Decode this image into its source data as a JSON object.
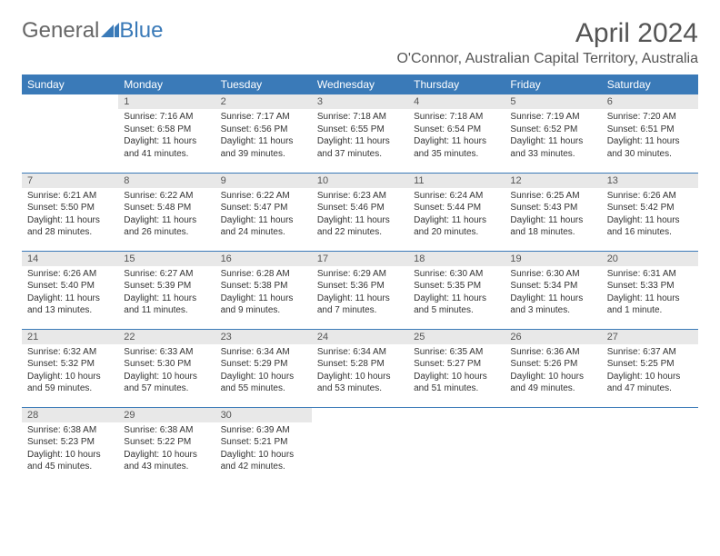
{
  "logo": {
    "general": "General",
    "blue": "Blue"
  },
  "header": {
    "month_title": "April 2024",
    "location": "O'Connor, Australian Capital Territory, Australia"
  },
  "colors": {
    "header_bg": "#3a7ab8",
    "daynum_bg": "#e8e8e8",
    "border": "#3a7ab8",
    "text": "#333333",
    "title_text": "#555555"
  },
  "weekdays": [
    "Sunday",
    "Monday",
    "Tuesday",
    "Wednesday",
    "Thursday",
    "Friday",
    "Saturday"
  ],
  "weeks": [
    [
      null,
      {
        "n": "1",
        "sr": "7:16 AM",
        "ss": "6:58 PM",
        "dl": "11 hours and 41 minutes."
      },
      {
        "n": "2",
        "sr": "7:17 AM",
        "ss": "6:56 PM",
        "dl": "11 hours and 39 minutes."
      },
      {
        "n": "3",
        "sr": "7:18 AM",
        "ss": "6:55 PM",
        "dl": "11 hours and 37 minutes."
      },
      {
        "n": "4",
        "sr": "7:18 AM",
        "ss": "6:54 PM",
        "dl": "11 hours and 35 minutes."
      },
      {
        "n": "5",
        "sr": "7:19 AM",
        "ss": "6:52 PM",
        "dl": "11 hours and 33 minutes."
      },
      {
        "n": "6",
        "sr": "7:20 AM",
        "ss": "6:51 PM",
        "dl": "11 hours and 30 minutes."
      }
    ],
    [
      {
        "n": "7",
        "sr": "6:21 AM",
        "ss": "5:50 PM",
        "dl": "11 hours and 28 minutes."
      },
      {
        "n": "8",
        "sr": "6:22 AM",
        "ss": "5:48 PM",
        "dl": "11 hours and 26 minutes."
      },
      {
        "n": "9",
        "sr": "6:22 AM",
        "ss": "5:47 PM",
        "dl": "11 hours and 24 minutes."
      },
      {
        "n": "10",
        "sr": "6:23 AM",
        "ss": "5:46 PM",
        "dl": "11 hours and 22 minutes."
      },
      {
        "n": "11",
        "sr": "6:24 AM",
        "ss": "5:44 PM",
        "dl": "11 hours and 20 minutes."
      },
      {
        "n": "12",
        "sr": "6:25 AM",
        "ss": "5:43 PM",
        "dl": "11 hours and 18 minutes."
      },
      {
        "n": "13",
        "sr": "6:26 AM",
        "ss": "5:42 PM",
        "dl": "11 hours and 16 minutes."
      }
    ],
    [
      {
        "n": "14",
        "sr": "6:26 AM",
        "ss": "5:40 PM",
        "dl": "11 hours and 13 minutes."
      },
      {
        "n": "15",
        "sr": "6:27 AM",
        "ss": "5:39 PM",
        "dl": "11 hours and 11 minutes."
      },
      {
        "n": "16",
        "sr": "6:28 AM",
        "ss": "5:38 PM",
        "dl": "11 hours and 9 minutes."
      },
      {
        "n": "17",
        "sr": "6:29 AM",
        "ss": "5:36 PM",
        "dl": "11 hours and 7 minutes."
      },
      {
        "n": "18",
        "sr": "6:30 AM",
        "ss": "5:35 PM",
        "dl": "11 hours and 5 minutes."
      },
      {
        "n": "19",
        "sr": "6:30 AM",
        "ss": "5:34 PM",
        "dl": "11 hours and 3 minutes."
      },
      {
        "n": "20",
        "sr": "6:31 AM",
        "ss": "5:33 PM",
        "dl": "11 hours and 1 minute."
      }
    ],
    [
      {
        "n": "21",
        "sr": "6:32 AM",
        "ss": "5:32 PM",
        "dl": "10 hours and 59 minutes."
      },
      {
        "n": "22",
        "sr": "6:33 AM",
        "ss": "5:30 PM",
        "dl": "10 hours and 57 minutes."
      },
      {
        "n": "23",
        "sr": "6:34 AM",
        "ss": "5:29 PM",
        "dl": "10 hours and 55 minutes."
      },
      {
        "n": "24",
        "sr": "6:34 AM",
        "ss": "5:28 PM",
        "dl": "10 hours and 53 minutes."
      },
      {
        "n": "25",
        "sr": "6:35 AM",
        "ss": "5:27 PM",
        "dl": "10 hours and 51 minutes."
      },
      {
        "n": "26",
        "sr": "6:36 AM",
        "ss": "5:26 PM",
        "dl": "10 hours and 49 minutes."
      },
      {
        "n": "27",
        "sr": "6:37 AM",
        "ss": "5:25 PM",
        "dl": "10 hours and 47 minutes."
      }
    ],
    [
      {
        "n": "28",
        "sr": "6:38 AM",
        "ss": "5:23 PM",
        "dl": "10 hours and 45 minutes."
      },
      {
        "n": "29",
        "sr": "6:38 AM",
        "ss": "5:22 PM",
        "dl": "10 hours and 43 minutes."
      },
      {
        "n": "30",
        "sr": "6:39 AM",
        "ss": "5:21 PM",
        "dl": "10 hours and 42 minutes."
      },
      null,
      null,
      null,
      null
    ]
  ],
  "labels": {
    "sunrise": "Sunrise:",
    "sunset": "Sunset:",
    "daylight": "Daylight:"
  }
}
